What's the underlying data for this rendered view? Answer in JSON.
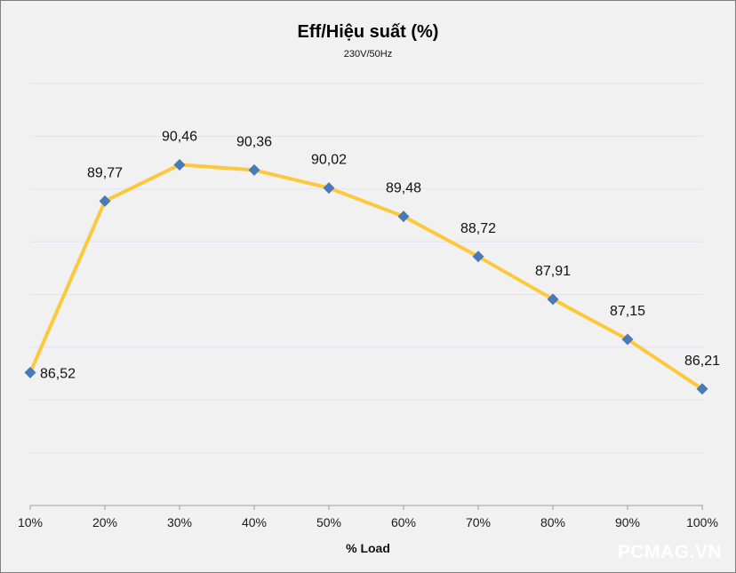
{
  "chart_data": {
    "type": "line",
    "title": "Eff/Hiệu suất (%)",
    "subtitle": "230V/50Hz",
    "xlabel": "% Load",
    "ylabel": "",
    "categories": [
      "10%",
      "20%",
      "30%",
      "40%",
      "50%",
      "60%",
      "70%",
      "80%",
      "90%",
      "100%"
    ],
    "x": [
      10,
      20,
      30,
      40,
      50,
      60,
      70,
      80,
      90,
      100
    ],
    "series": [
      {
        "name": "Eff/Hiệu suất (%) 230V/50Hz",
        "values": [
          86.52,
          89.77,
          90.46,
          90.36,
          90.02,
          89.48,
          88.72,
          87.91,
          87.15,
          86.21
        ]
      }
    ],
    "data_labels": [
      "86,52",
      "89,77",
      "90,46",
      "90,36",
      "90,02",
      "89,48",
      "88,72",
      "87,91",
      "87,15",
      "86,21"
    ],
    "ylim": [
      84,
      92
    ],
    "grid": "horizontal gridlines every 1 unit, no y-axis tick labels",
    "legend": "none",
    "marker": "diamond"
  },
  "colors": {
    "background": "#f1f1f2",
    "frame_border": "#7f7f7f",
    "gridline": "#dde4f0",
    "axis": "#9e9e9e",
    "line": "#fcc83c",
    "marker": "#4a79b8",
    "tick_label": "#1a1a1a",
    "data_label": "#111111",
    "watermark_text": "#ffffff"
  },
  "footer": {
    "watermark": "PCMAG.VN"
  }
}
